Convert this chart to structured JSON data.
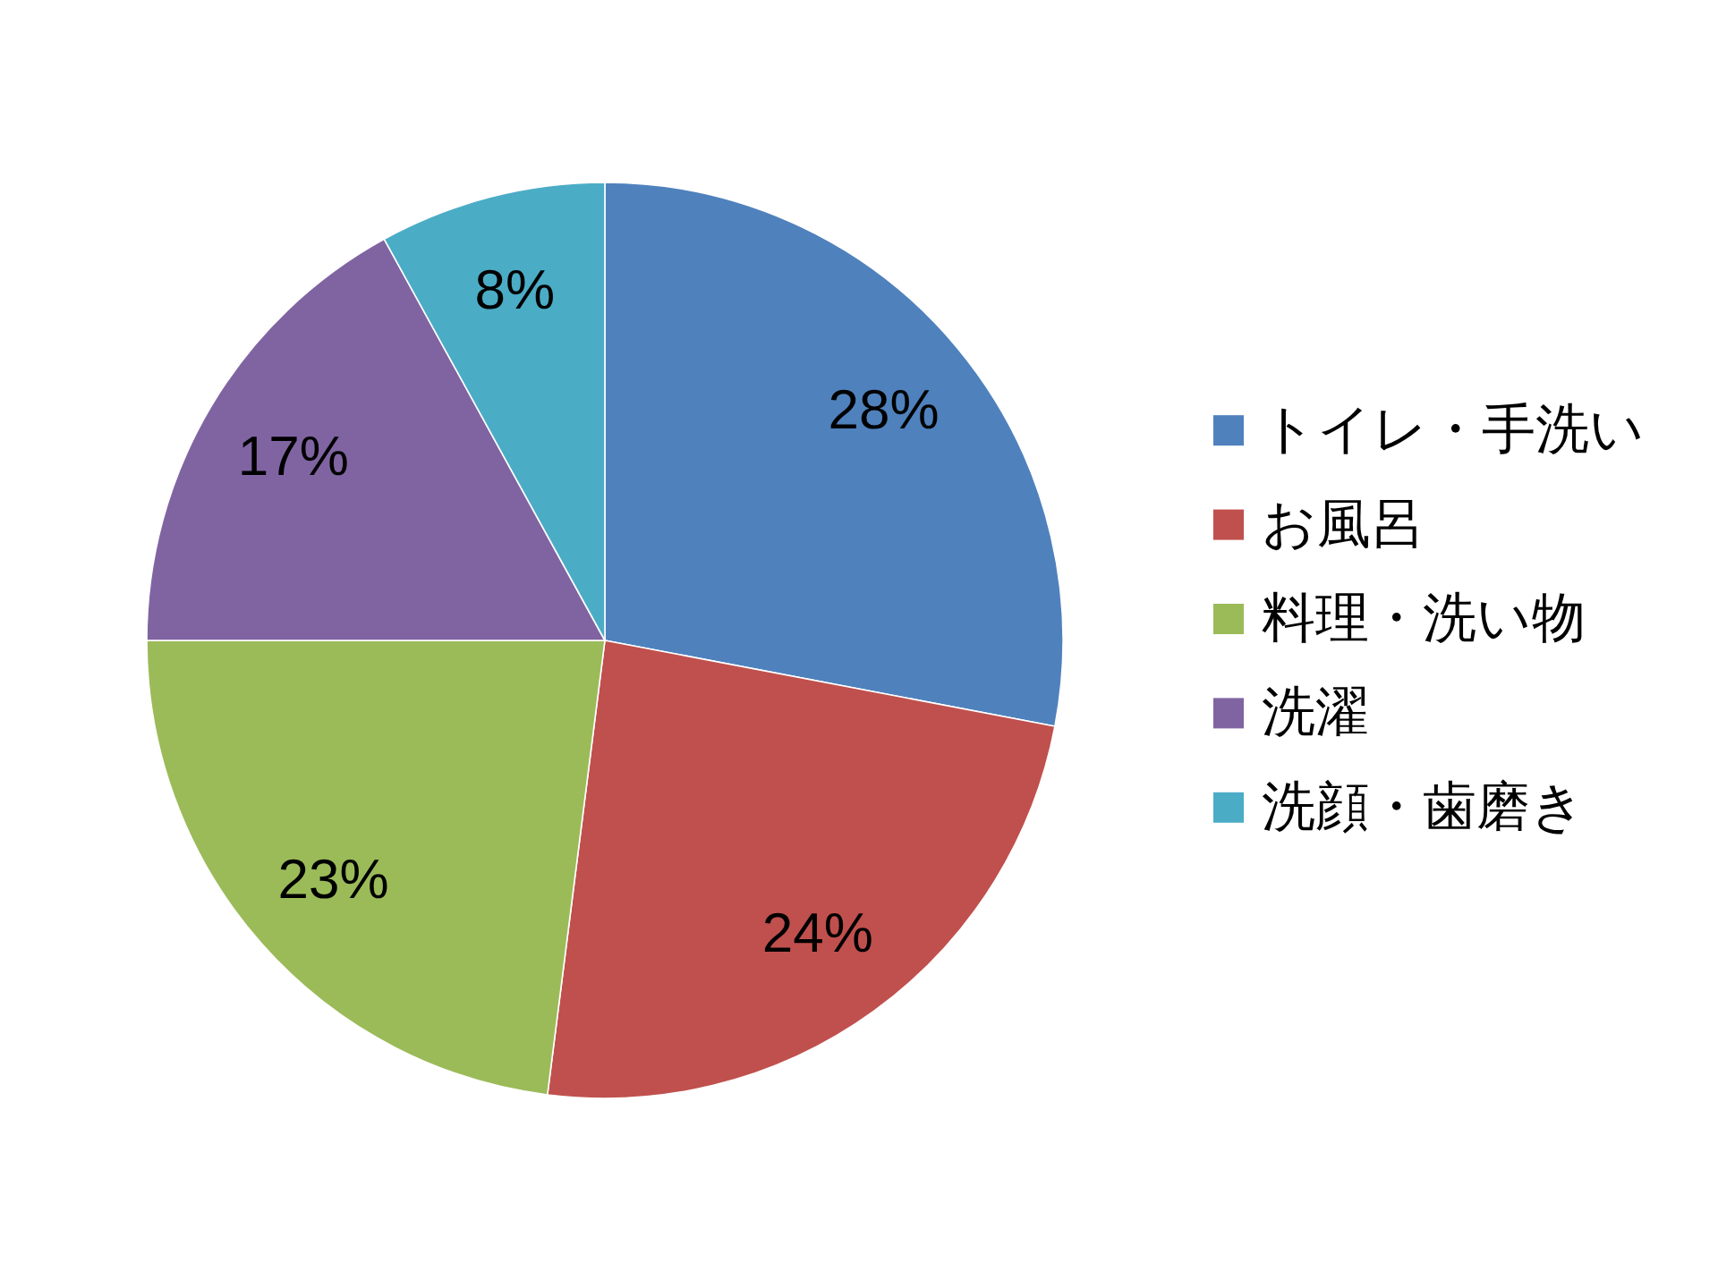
{
  "chart_data": {
    "type": "pie",
    "categories": [
      "トイレ・手洗い",
      "お風呂",
      "料理・洗い物",
      "洗濯",
      "洗顔・歯磨き"
    ],
    "values": [
      28,
      24,
      23,
      17,
      8
    ],
    "colors": [
      "#4f81bd",
      "#c0504d",
      "#9bbb59",
      "#8064a2",
      "#4bacc6"
    ],
    "value_labels": [
      "28%",
      "24%",
      "23%",
      "17%",
      "8%"
    ],
    "legend": "right"
  }
}
